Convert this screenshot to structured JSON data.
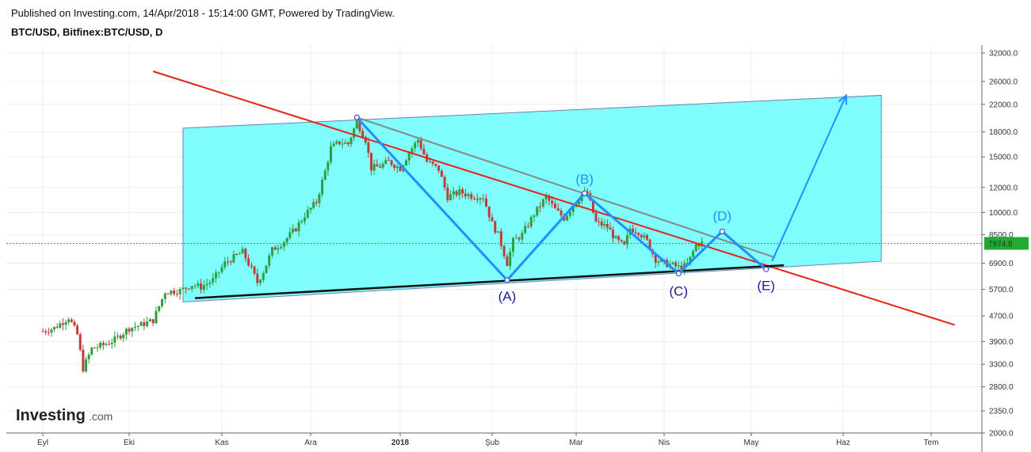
{
  "header": {
    "published": "Published on Investing.com, 14/Apr/2018 - 15:14:00 GMT, Powered by TradingView.",
    "symbol": "BTC/USD, Bitfinex:BTC/USD, D"
  },
  "brand": {
    "logo_main": "Investing",
    "logo_suffix": ".com"
  },
  "colors": {
    "channel_fill": "#7ffcfc",
    "channel_edge": "#7080b0",
    "trendline_red": "#e8201a",
    "trendline_gray": "#888888",
    "support_line": "#111111",
    "wave": "#1e90ff",
    "wave_label": "#1a1aa0",
    "up_candle": "#2e9e3e",
    "down_candle": "#c23b3b",
    "last_price_line": "#22bb22",
    "last_price_badge": "#22aa33"
  },
  "chart_data": {
    "type": "candlestick",
    "symbol": "BTC/USD",
    "scale": "log",
    "grid": true,
    "y_ticks": [
      2000,
      2350,
      2800,
      3300,
      3900,
      4700,
      5700,
      6900,
      8500,
      10000,
      12000,
      15000,
      18000,
      22000,
      26000,
      32000
    ],
    "y_tick_labels": [
      "2000.0",
      "2350.0",
      "2800.0",
      "3300.0",
      "3900.0",
      "4700.0",
      "5700.0",
      "6900.0",
      "8500.0",
      "10000.0",
      "12000.0",
      "15000.0",
      "18000.0",
      "22000.0",
      "26000.0",
      "32000.0"
    ],
    "x_ticks": [
      "2017-09-01",
      "2017-10-01",
      "2017-11-01",
      "2017-12-01",
      "2018-01-01",
      "2018-02-01",
      "2018-03-01",
      "2018-04-01",
      "2018-05-01",
      "2018-06-01",
      "2018-07-01"
    ],
    "x_tick_labels": [
      "Eyl",
      "Eki",
      "Kas",
      "Ara",
      "2018",
      "Şub",
      "Mar",
      "Nis",
      "May",
      "Haz",
      "Tem"
    ],
    "last_price": 7974.8,
    "last_price_label": "7974.8",
    "price_path": [
      [
        "2017-09-01",
        4200
      ],
      [
        "2017-09-05",
        4300
      ],
      [
        "2017-09-10",
        4650
      ],
      [
        "2017-09-13",
        4100
      ],
      [
        "2017-09-15",
        3200
      ],
      [
        "2017-09-18",
        3700
      ],
      [
        "2017-09-22",
        3800
      ],
      [
        "2017-09-26",
        3950
      ],
      [
        "2017-10-01",
        4300
      ],
      [
        "2017-10-05",
        4400
      ],
      [
        "2017-10-09",
        4550
      ],
      [
        "2017-10-13",
        5600
      ],
      [
        "2017-10-18",
        5650
      ],
      [
        "2017-10-22",
        5900
      ],
      [
        "2017-10-25",
        5800
      ],
      [
        "2017-10-29",
        6100
      ],
      [
        "2017-11-02",
        6900
      ],
      [
        "2017-11-05",
        7200
      ],
      [
        "2017-11-08",
        7500
      ],
      [
        "2017-11-11",
        6600
      ],
      [
        "2017-11-13",
        6000
      ],
      [
        "2017-11-15",
        6500
      ],
      [
        "2017-11-18",
        7600
      ],
      [
        "2017-11-22",
        8100
      ],
      [
        "2017-11-26",
        8900
      ],
      [
        "2017-11-29",
        9800
      ],
      [
        "2017-12-03",
        10800
      ],
      [
        "2017-12-06",
        13500
      ],
      [
        "2017-12-08",
        16000
      ],
      [
        "2017-12-11",
        16700
      ],
      [
        "2017-12-14",
        16500
      ],
      [
        "2017-12-17",
        19400
      ],
      [
        "2017-12-20",
        17000
      ],
      [
        "2017-12-22",
        13800
      ],
      [
        "2017-12-25",
        14000
      ],
      [
        "2017-12-28",
        14500
      ],
      [
        "2018-01-01",
        13800
      ],
      [
        "2018-01-04",
        15500
      ],
      [
        "2018-01-07",
        17000
      ],
      [
        "2018-01-10",
        14500
      ],
      [
        "2018-01-14",
        13700
      ],
      [
        "2018-01-17",
        11200
      ],
      [
        "2018-01-21",
        11600
      ],
      [
        "2018-01-25",
        11300
      ],
      [
        "2018-01-29",
        11200
      ],
      [
        "2018-02-01",
        9200
      ],
      [
        "2018-02-03",
        8500
      ],
      [
        "2018-02-06",
        6900
      ],
      [
        "2018-02-08",
        8100
      ],
      [
        "2018-02-11",
        8500
      ],
      [
        "2018-02-15",
        9900
      ],
      [
        "2018-02-19",
        11200
      ],
      [
        "2018-02-22",
        10200
      ],
      [
        "2018-02-25",
        9600
      ],
      [
        "2018-02-28",
        10500
      ],
      [
        "2018-03-03",
        11400
      ],
      [
        "2018-03-05",
        11500
      ],
      [
        "2018-03-08",
        9300
      ],
      [
        "2018-03-12",
        9000
      ],
      [
        "2018-03-15",
        8200
      ],
      [
        "2018-03-18",
        7800
      ],
      [
        "2018-03-20",
        8900
      ],
      [
        "2018-03-23",
        8700
      ],
      [
        "2018-03-26",
        8100
      ],
      [
        "2018-03-29",
        7100
      ],
      [
        "2018-04-01",
        6900
      ],
      [
        "2018-04-04",
        6800
      ],
      [
        "2018-04-06",
        6700
      ],
      [
        "2018-04-09",
        6800
      ],
      [
        "2018-04-12",
        7900
      ],
      [
        "2018-04-14",
        8000
      ]
    ],
    "channel": {
      "upper": [
        [
          "2017-10-19",
          18500
        ],
        [
          "2018-06-14",
          23500
        ]
      ],
      "lower": [
        [
          "2017-10-19",
          5200
        ],
        [
          "2018-06-14",
          7000
        ]
      ]
    },
    "trendlines": {
      "red_resistance": [
        [
          "2017-10-09",
          28000
        ],
        [
          "2018-07-09",
          4400
        ]
      ],
      "gray_resistance": [
        [
          "2017-12-17",
          20000
        ],
        [
          "2018-05-09",
          7200
        ]
      ],
      "black_support": [
        [
          "2017-10-23",
          5350
        ],
        [
          "2018-05-12",
          6800
        ]
      ]
    },
    "wave": {
      "points": [
        {
          "date": "2017-12-17",
          "price": 20000,
          "label": ""
        },
        {
          "date": "2018-02-06",
          "price": 6100,
          "label": "(A)"
        },
        {
          "date": "2018-03-04",
          "price": 11500,
          "label": "(B)"
        },
        {
          "date": "2018-04-06",
          "price": 6400,
          "label": "(C)"
        },
        {
          "date": "2018-04-21",
          "price": 8700,
          "label": "(D)"
        },
        {
          "date": "2018-05-06",
          "price": 6600,
          "label": "(E)"
        }
      ],
      "projection": [
        [
          "2018-05-08",
          7000
        ],
        [
          "2018-06-02",
          23500
        ]
      ]
    }
  }
}
